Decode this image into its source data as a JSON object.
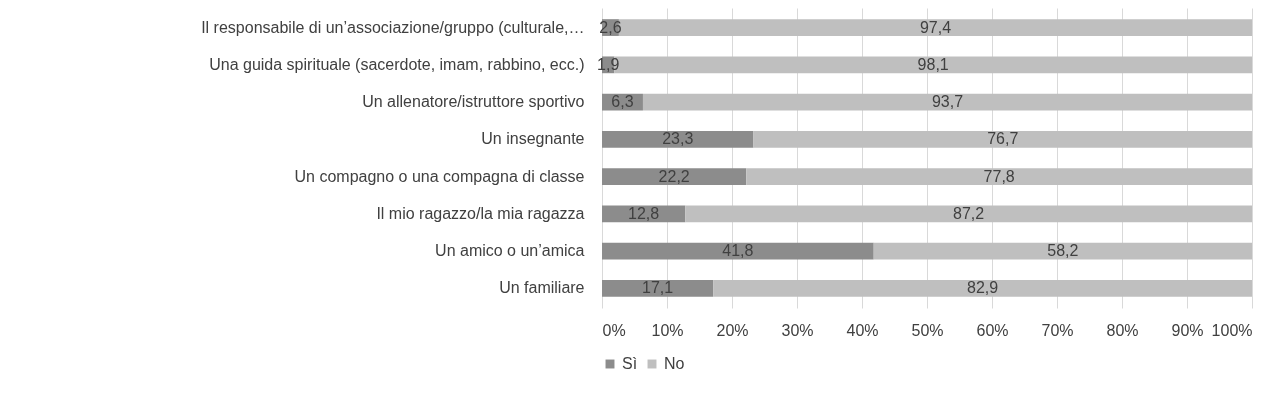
{
  "chart_data": {
    "type": "bar",
    "orientation": "horizontal",
    "stacked": true,
    "grid": "x",
    "legend": "bottom",
    "categories": [
      "Il responsabile di un’associazione/gruppo (culturale,…",
      "Una guida spirituale (sacerdote, imam, rabbino, ecc.)",
      "Un allenatore/istruttore sportivo",
      "Un insegnante",
      "Un compagno o una compagna di classe",
      "Il mio ragazzo/la mia ragazza",
      "Un amico o un’amica",
      "Un familiare"
    ],
    "series": [
      {
        "name": "Sì",
        "color": "#8c8c8c",
        "values": [
          2.6,
          1.9,
          6.3,
          23.3,
          22.2,
          12.8,
          41.8,
          17.1
        ],
        "value_labels": [
          "2,6",
          "1,9",
          "6,3",
          "23,3",
          "22,2",
          "12,8",
          "41,8",
          "17,1"
        ]
      },
      {
        "name": "No",
        "color": "#bfbfbf",
        "values": [
          97.4,
          98.1,
          93.7,
          76.7,
          77.8,
          87.2,
          58.2,
          82.9
        ],
        "value_labels": [
          "97,4",
          "98,1",
          "93,7",
          "76,7",
          "77,8",
          "87,2",
          "58,2",
          "82,9"
        ]
      }
    ],
    "xlim": [
      0,
      100
    ],
    "xticks": [
      {
        "value": 0,
        "label": "0%"
      },
      {
        "value": 10,
        "label": "10%"
      },
      {
        "value": 20,
        "label": "20%"
      },
      {
        "value": 30,
        "label": "30%"
      },
      {
        "value": 40,
        "label": "40%"
      },
      {
        "value": 50,
        "label": "50%"
      },
      {
        "value": 60,
        "label": "60%"
      },
      {
        "value": 70,
        "label": "70%"
      },
      {
        "value": 80,
        "label": "80%"
      },
      {
        "value": 90,
        "label": "90%"
      },
      {
        "value": 100,
        "label": "100%"
      }
    ]
  }
}
